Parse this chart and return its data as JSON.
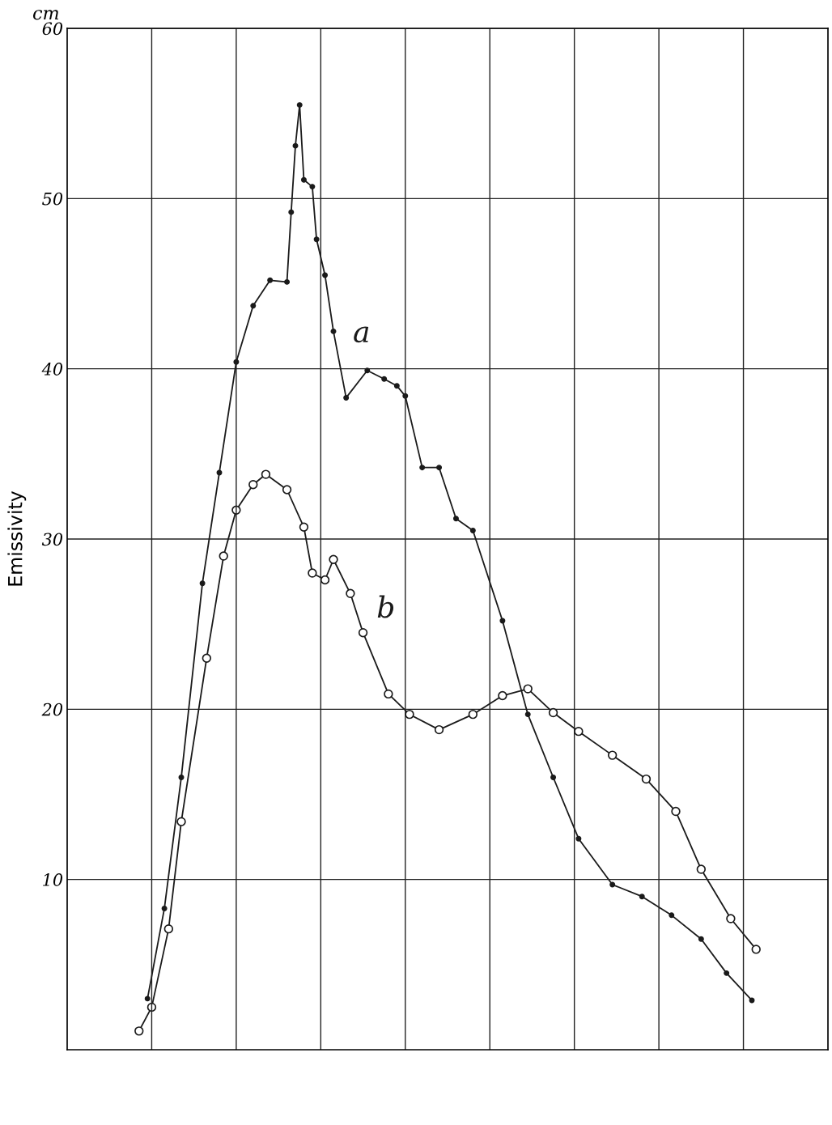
{
  "chart_data": {
    "type": "line",
    "ylabel": "Emissivity",
    "categories": [
      null,
      null,
      null,
      null,
      null,
      null,
      null,
      null,
      null,
      null,
      null,
      null,
      null,
      null,
      null,
      null,
      null,
      null,
      null,
      null,
      null,
      null,
      null,
      null,
      null,
      null,
      null,
      null,
      null,
      null,
      null,
      null,
      null,
      null,
      null,
      null,
      null,
      null,
      null,
      null,
      null,
      null,
      null,
      null,
      null,
      null,
      null,
      null,
      null,
      null,
      null,
      null,
      null,
      null,
      null,
      null,
      null,
      null,
      null,
      null,
      null,
      null,
      null,
      null,
      null,
      null,
      null,
      null,
      null,
      null,
      null,
      null,
      null,
      null,
      null,
      null,
      null,
      null,
      null,
      null,
      null,
      null,
      null,
      null,
      null,
      null,
      null,
      null,
      null,
      null,
      null,
      null,
      null,
      null,
      null,
      null,
      null,
      null,
      null,
      null,
      null,
      null,
      null,
      null,
      null,
      null,
      null,
      null,
      null,
      null,
      null,
      null,
      null,
      null,
      null,
      null,
      null,
      null,
      null,
      null,
      null,
      null,
      null,
      null,
      null,
      null,
      null,
      null,
      null,
      null,
      null,
      null,
      null,
      null,
      null,
      null,
      null,
      null,
      null,
      null,
      null,
      null,
      null,
      null,
      null,
      null,
      null,
      null,
      null,
      null,
      null,
      null,
      null,
      null,
      null,
      null,
      null,
      null,
      null,
      null,
      null,
      null,
      null,
      null,
      null,
      null,
      null,
      null,
      null,
      null,
      null,
      null,
      null,
      null,
      null,
      null,
      null,
      null,
      null,
      null,
      null
    ],
    "series": [
      {
        "name": "a",
        "color": "#1a1a1a",
        "marker": "circle",
        "values": [
          null,
          null,
          null,
          null,
          null,
          null,
          null,
          null,
          null,
          null,
          null,
          null,
          null,
          null,
          null,
          null,
          null,
          null,
          null,
          3.0,
          null,
          null,
          null,
          8.3,
          null,
          null,
          null,
          16.0,
          null,
          null,
          null,
          null,
          27.4,
          null,
          null,
          null,
          33.9,
          null,
          null,
          null,
          40.4,
          null,
          null,
          null,
          43.7,
          null,
          null,
          null,
          45.2,
          null,
          null,
          null,
          45.1,
          49.2,
          53.1,
          55.5,
          51.1,
          null,
          50.7,
          47.6,
          null,
          45.5,
          null,
          42.2,
          null,
          null,
          38.3,
          null,
          null,
          null,
          null,
          39.9,
          null,
          null,
          null,
          39.4,
          null,
          null,
          39.0,
          null,
          38.4,
          null,
          null,
          null,
          34.2,
          null,
          null,
          null,
          34.2,
          null,
          null,
          null,
          31.2,
          null,
          null,
          null,
          30.5,
          null,
          null,
          null,
          null,
          null,
          null,
          25.2,
          null,
          null,
          null,
          null,
          null,
          19.7,
          null,
          null,
          null,
          null,
          null,
          16.0,
          null,
          null,
          null,
          null,
          null,
          12.4,
          null,
          null,
          null,
          null,
          null,
          null,
          null,
          9.7,
          null,
          null,
          null,
          null,
          null,
          null,
          9.0,
          null,
          null,
          null,
          null,
          null,
          null,
          7.9,
          null,
          null,
          null,
          null,
          null,
          null,
          6.5,
          null,
          null,
          null,
          null,
          null,
          4.5,
          null,
          null,
          null,
          null,
          null,
          2.9,
          null,
          null,
          null,
          null,
          null,
          null,
          null,
          null,
          null,
          null,
          null,
          null,
          null,
          null,
          null,
          null,
          null,
          null
        ]
      },
      {
        "name": "b",
        "color": "#1a1a1a",
        "marker": "circle",
        "values": [
          null,
          null,
          null,
          null,
          null,
          null,
          null,
          null,
          null,
          null,
          null,
          null,
          null,
          null,
          null,
          null,
          null,
          1.1,
          null,
          null,
          2.5,
          null,
          null,
          null,
          7.1,
          null,
          null,
          13.4,
          null,
          null,
          null,
          null,
          null,
          23.0,
          null,
          null,
          null,
          29.0,
          null,
          null,
          31.7,
          null,
          null,
          null,
          33.2,
          null,
          null,
          33.8,
          null,
          null,
          null,
          null,
          32.9,
          null,
          null,
          null,
          30.7,
          null,
          28.0,
          null,
          null,
          27.6,
          null,
          28.8,
          null,
          null,
          null,
          26.8,
          null,
          null,
          24.5,
          null,
          null,
          null,
          null,
          null,
          20.9,
          null,
          null,
          null,
          null,
          19.7,
          null,
          null,
          null,
          null,
          null,
          null,
          18.8,
          null,
          null,
          null,
          null,
          null,
          null,
          null,
          19.7,
          null,
          null,
          null,
          null,
          null,
          null,
          20.8,
          null,
          null,
          null,
          null,
          null,
          21.2,
          null,
          null,
          null,
          null,
          null,
          19.8,
          null,
          null,
          null,
          null,
          null,
          18.7,
          null,
          null,
          null,
          null,
          null,
          null,
          null,
          17.3,
          null,
          null,
          null,
          null,
          null,
          null,
          null,
          15.9,
          null,
          null,
          null,
          null,
          null,
          null,
          14.0,
          null,
          null,
          null,
          null,
          null,
          10.6,
          null,
          null,
          null,
          null,
          null,
          null,
          7.7,
          null,
          null,
          null,
          null,
          null,
          5.9,
          null,
          null,
          null,
          null,
          null,
          null,
          null,
          null,
          null,
          null,
          null,
          null,
          null,
          null,
          null,
          null,
          null
        ]
      }
    ],
    "ylim": [
      0,
      60
    ],
    "yticks": [
      10,
      20,
      30,
      40,
      50,
      60
    ],
    "grid": true,
    "line_style": "solid",
    "tick_labels": "y",
    "annotations": [
      "cm"
    ]
  }
}
